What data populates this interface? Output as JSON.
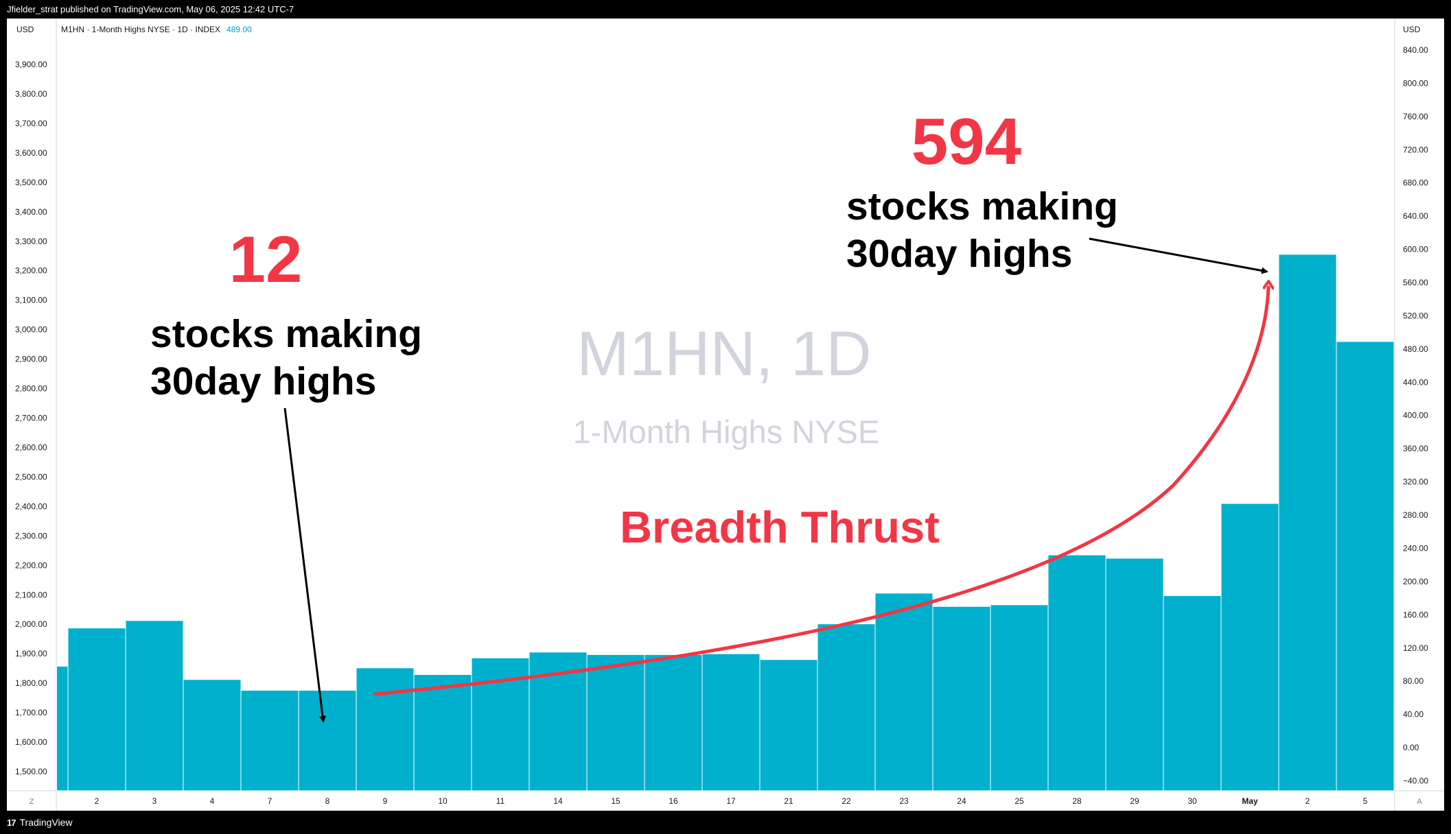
{
  "header": {
    "published_text": "Jfielder_strat published on TradingView.com, May 06, 2025 12:42 UTC-7"
  },
  "legend": {
    "symbol_line": "M1HN · 1-Month Highs NYSE · 1D · INDEX",
    "last_value": "489.00"
  },
  "left_axis": {
    "currency": "USD",
    "ticks": [
      "3,900.00",
      "3,800.00",
      "3,700.00",
      "3,600.00",
      "3,500.00",
      "3,400.00",
      "3,300.00",
      "3,200.00",
      "3,100.00",
      "3,000.00",
      "2,900.00",
      "2,800.00",
      "2,700.00",
      "2,600.00",
      "2,500.00",
      "2,400.00",
      "2,300.00",
      "2,200.00",
      "2,100.00",
      "2,000.00",
      "1,900.00",
      "1,800.00",
      "1,700.00",
      "1,600.00",
      "1,500.00"
    ],
    "button": "Z"
  },
  "right_axis": {
    "currency": "USD",
    "ticks": [
      "840.00",
      "800.00",
      "760.00",
      "720.00",
      "680.00",
      "640.00",
      "600.00",
      "560.00",
      "520.00",
      "480.00",
      "440.00",
      "400.00",
      "360.00",
      "320.00",
      "280.00",
      "240.00",
      "200.00",
      "160.00",
      "120.00",
      "80.00",
      "40.00",
      "0.00",
      "−40.00"
    ],
    "button": "A"
  },
  "watermark": {
    "title": "M1HN, 1D",
    "subtitle": "1-Month Highs NYSE"
  },
  "annotations": {
    "low_number": "12",
    "low_text_line1": "stocks making",
    "low_text_line2": "30day highs",
    "high_number": "594",
    "high_text_line1": "stocks making",
    "high_text_line2": "30day highs",
    "thrust_label": "Breadth Thrust",
    "accent_color": "#f23645"
  },
  "footer": {
    "brand": "TradingView"
  },
  "chart_data": {
    "type": "bar",
    "bar_color": "#00b0cc",
    "categories": [
      "",
      "2",
      "3",
      "4",
      "7",
      "8",
      "9",
      "10",
      "11",
      "14",
      "15",
      "16",
      "17",
      "21",
      "22",
      "23",
      "24",
      "25",
      "28",
      "29",
      "30",
      "May",
      "2",
      "5"
    ],
    "values": [
      98,
      144,
      153,
      82,
      69,
      69,
      96,
      88,
      108,
      115,
      112,
      112,
      113,
      106,
      149,
      186,
      170,
      172,
      232,
      228,
      183,
      294,
      594,
      489
    ],
    "ylim": [
      -52,
      878
    ]
  }
}
